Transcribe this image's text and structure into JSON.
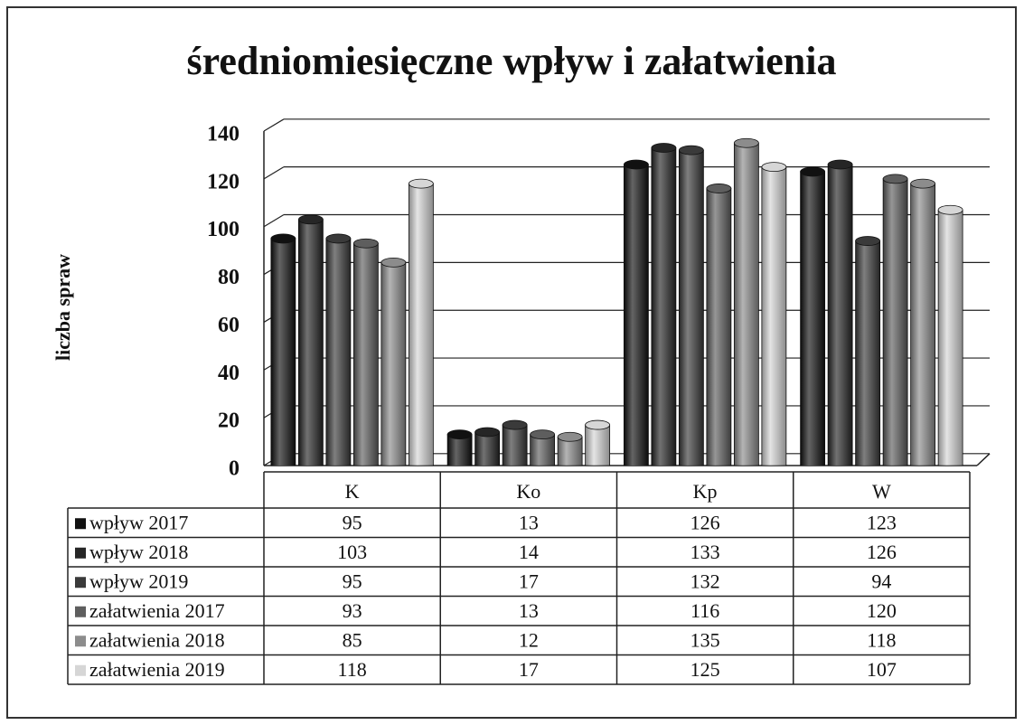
{
  "chart_data": {
    "type": "bar",
    "title": "średniomiesięczne wpływ i załatwienia",
    "y_label": "liczba spraw",
    "categories": [
      "K",
      "Ko",
      "Kp",
      "W"
    ],
    "series": [
      {
        "name": "wpływ 2017",
        "color": "#111111",
        "values": [
          95,
          13,
          126,
          123
        ]
      },
      {
        "name": "wpływ 2018",
        "color": "#262626",
        "values": [
          103,
          14,
          133,
          126
        ]
      },
      {
        "name": "wpływ 2019",
        "color": "#3a3a3a",
        "values": [
          95,
          17,
          132,
          94
        ]
      },
      {
        "name": "załatwienia 2017",
        "color": "#5e5e5e",
        "values": [
          93,
          13,
          116,
          120
        ]
      },
      {
        "name": "załatwienia 2018",
        "color": "#8c8c8c",
        "values": [
          85,
          12,
          135,
          118
        ]
      },
      {
        "name": "załatwienia 2019",
        "color": "#d6d6d6",
        "values": [
          118,
          17,
          125,
          107
        ]
      }
    ],
    "ylim": [
      0,
      140
    ],
    "yticks": [
      0,
      20,
      40,
      60,
      80,
      100,
      120,
      140
    ],
    "grid": true
  }
}
